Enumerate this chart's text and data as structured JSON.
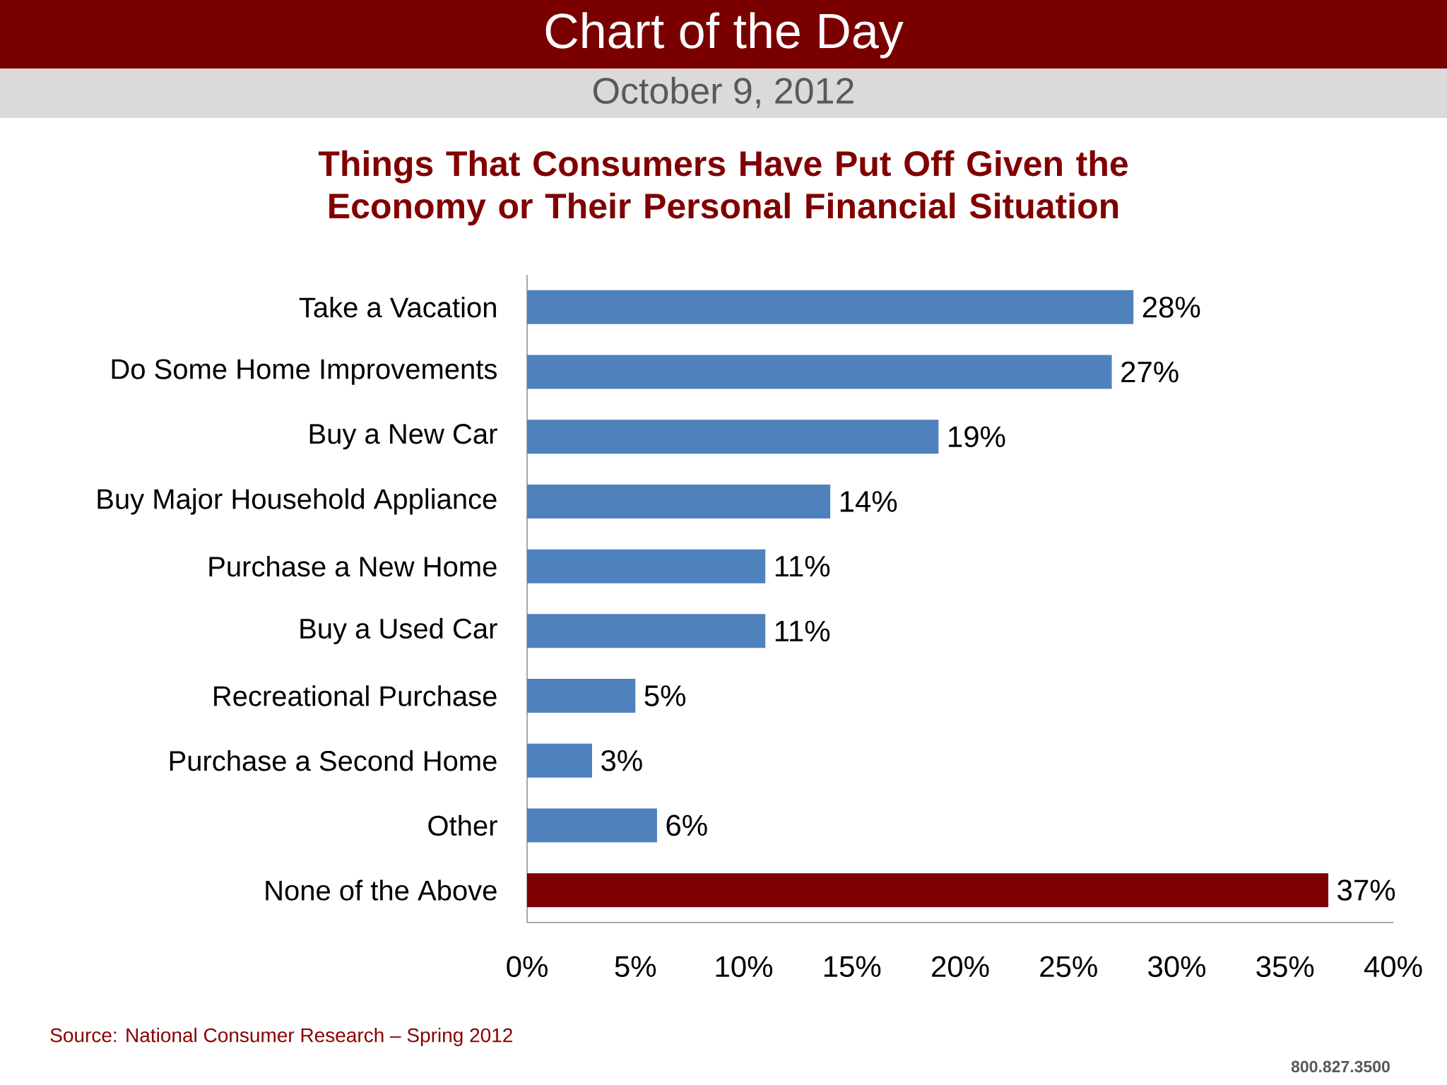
{
  "chart_data": {
    "type": "bar",
    "orientation": "horizontal",
    "title": "Things That Consumers Have Put Off Given the Economy or Their Personal Financial Situation",
    "categories": [
      "Take a Vacation",
      "Do Some Home Improvements",
      "Buy a New Car",
      "Buy Major Household Appliance",
      "Purchase a New Home",
      "Buy a Used Car",
      "Recreational Purchase",
      "Purchase a Second Home",
      "Other",
      "None of the Above"
    ],
    "values": [
      28,
      27,
      19,
      14,
      11,
      11,
      5,
      3,
      6,
      37
    ],
    "value_labels": [
      "28%",
      "27%",
      "19%",
      "14%",
      "11%",
      "11%",
      "5%",
      "3%",
      "6%",
      "37%"
    ],
    "colors": [
      "#4f81bd",
      "#4f81bd",
      "#4f81bd",
      "#4f81bd",
      "#4f81bd",
      "#4f81bd",
      "#4f81bd",
      "#4f81bd",
      "#4f81bd",
      "#7f0000"
    ],
    "xlim": [
      0,
      40
    ],
    "xticks": [
      {
        "value": 0,
        "label": "0%"
      },
      {
        "value": 5,
        "label": "5%"
      },
      {
        "value": 10,
        "label": "10%"
      },
      {
        "value": 15,
        "label": "15%"
      },
      {
        "value": 20,
        "label": "20%"
      },
      {
        "value": 25,
        "label": "25%"
      },
      {
        "value": 30,
        "label": "30%"
      },
      {
        "value": 35,
        "label": "35%"
      },
      {
        "value": 40,
        "label": "40%"
      }
    ],
    "annotations": [
      "Chart of the Day",
      "October 9, 2012",
      "Source: National Consumer Research – Spring 2012",
      "800.827.3500"
    ]
  }
}
